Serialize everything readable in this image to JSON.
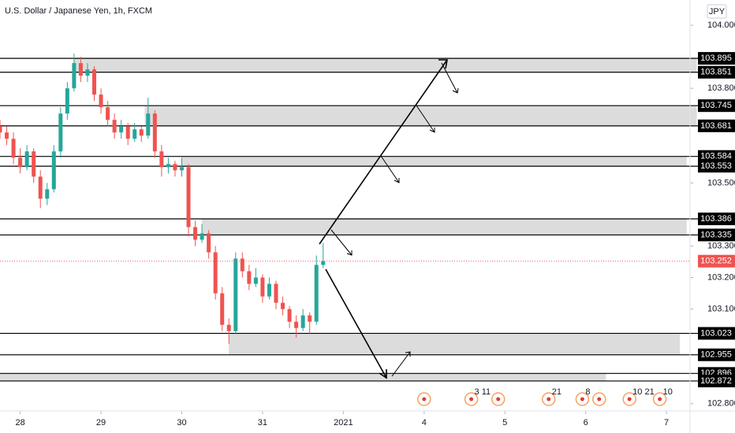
{
  "chart_data": {
    "type": "candlestick",
    "title": "U.S. Dollar / Japanese Yen, 1h, FXCM",
    "currency": "JPY",
    "xlim": [
      -6,
      199
    ],
    "ylim": [
      102.777,
      104.08
    ],
    "xticks": [
      {
        "value": 0,
        "label": "28"
      },
      {
        "value": 24,
        "label": "29"
      },
      {
        "value": 48,
        "label": "30"
      },
      {
        "value": 72,
        "label": "31"
      },
      {
        "value": 96,
        "label": "2021"
      },
      {
        "value": 120,
        "label": "4"
      },
      {
        "value": 144,
        "label": "5"
      },
      {
        "value": 168,
        "label": "6"
      },
      {
        "value": 192,
        "label": "7"
      }
    ],
    "yticks": [
      {
        "value": 104.0,
        "label": "104.000"
      },
      {
        "value": 103.8,
        "label": "103.800"
      },
      {
        "value": 103.5,
        "label": "103.500"
      },
      {
        "value": 103.3,
        "label": "103.300"
      },
      {
        "value": 103.2,
        "label": "103.200"
      },
      {
        "value": 103.1,
        "label": "103.100"
      },
      {
        "value": 102.8,
        "label": "102.800"
      }
    ],
    "up_color": "#26a69a",
    "down_color": "#ef5350",
    "x": [
      -6,
      -4,
      -2,
      0,
      2,
      4,
      6,
      8,
      10,
      12,
      14,
      16,
      18,
      20,
      22,
      24,
      26,
      28,
      30,
      32,
      34,
      36,
      38,
      40,
      42,
      44,
      46,
      48,
      50,
      52,
      54,
      56,
      58,
      60,
      62,
      64,
      66,
      68,
      70,
      72,
      74,
      76,
      78,
      80,
      82,
      84,
      86,
      88,
      90
    ],
    "open": [
      103.68,
      103.66,
      103.64,
      103.58,
      103.55,
      103.6,
      103.52,
      103.45,
      103.48,
      103.6,
      103.72,
      103.8,
      103.88,
      103.84,
      103.86,
      103.78,
      103.74,
      103.7,
      103.66,
      103.68,
      103.64,
      103.67,
      103.65,
      103.72,
      103.6,
      103.55,
      103.56,
      103.54,
      103.55,
      103.36,
      103.32,
      103.34,
      103.28,
      103.15,
      103.05,
      103.03,
      103.26,
      103.22,
      103.18,
      103.2,
      103.14,
      103.18,
      103.12,
      103.1,
      103.06,
      103.04,
      103.08,
      103.06,
      103.24
    ],
    "high": [
      103.7,
      103.68,
      103.66,
      103.61,
      103.62,
      103.61,
      103.54,
      103.5,
      103.62,
      103.74,
      103.82,
      103.91,
      103.9,
      103.88,
      103.87,
      103.8,
      103.76,
      103.72,
      103.7,
      103.69,
      103.69,
      103.68,
      103.77,
      103.73,
      103.62,
      103.58,
      103.57,
      103.58,
      103.56,
      103.38,
      103.37,
      103.35,
      103.3,
      103.17,
      103.07,
      103.28,
      103.28,
      103.24,
      103.23,
      103.21,
      103.2,
      103.19,
      103.14,
      103.11,
      103.08,
      103.1,
      103.09,
      103.27,
      103.31
    ],
    "low": [
      103.64,
      103.62,
      103.56,
      103.53,
      103.54,
      103.5,
      103.42,
      103.43,
      103.47,
      103.58,
      103.7,
      103.79,
      103.82,
      103.82,
      103.76,
      103.72,
      103.68,
      103.64,
      103.64,
      103.62,
      103.63,
      103.63,
      103.64,
      103.58,
      103.52,
      103.53,
      103.52,
      103.52,
      103.33,
      103.3,
      103.31,
      103.26,
      103.13,
      103.03,
      102.99,
      103.02,
      103.2,
      103.16,
      103.17,
      103.12,
      103.13,
      103.1,
      103.08,
      103.04,
      103.01,
      103.03,
      103.02,
      103.05,
      103.23
    ],
    "close": [
      103.66,
      103.64,
      103.58,
      103.55,
      103.6,
      103.52,
      103.45,
      103.48,
      103.6,
      103.72,
      103.8,
      103.88,
      103.84,
      103.86,
      103.78,
      103.74,
      103.7,
      103.66,
      103.68,
      103.64,
      103.67,
      103.65,
      103.72,
      103.6,
      103.55,
      103.56,
      103.54,
      103.55,
      103.36,
      103.32,
      103.34,
      103.28,
      103.15,
      103.05,
      103.03,
      103.26,
      103.22,
      103.18,
      103.2,
      103.14,
      103.18,
      103.12,
      103.1,
      103.06,
      103.04,
      103.08,
      103.06,
      103.24,
      103.252
    ],
    "last_price": 103.252,
    "levels": [
      103.895,
      103.851,
      103.745,
      103.681,
      103.584,
      103.553,
      103.386,
      103.335,
      103.023,
      102.955,
      102.896,
      102.872
    ],
    "zones": [
      {
        "low": 103.851,
        "high": 103.895,
        "start": 16,
        "end": 201
      },
      {
        "low": 103.681,
        "high": 103.745,
        "start": 37,
        "end": 201
      },
      {
        "low": 103.553,
        "high": 103.584,
        "start": 48,
        "end": 198
      },
      {
        "low": 103.335,
        "high": 103.386,
        "start": 54,
        "end": 198
      },
      {
        "low": 102.955,
        "high": 103.023,
        "start": 62,
        "end": 196
      },
      {
        "low": 102.872,
        "high": 102.896,
        "start": -6,
        "end": 174
      }
    ],
    "events": [
      {
        "x": 120
      },
      {
        "x": 134,
        "label": "3 11"
      },
      {
        "x": 142
      },
      {
        "x": 157,
        "label": "21"
      },
      {
        "x": 167,
        "label": "8"
      },
      {
        "x": 172
      },
      {
        "x": 181,
        "label": "10 21"
      },
      {
        "x": 190,
        "label": "10"
      }
    ]
  }
}
